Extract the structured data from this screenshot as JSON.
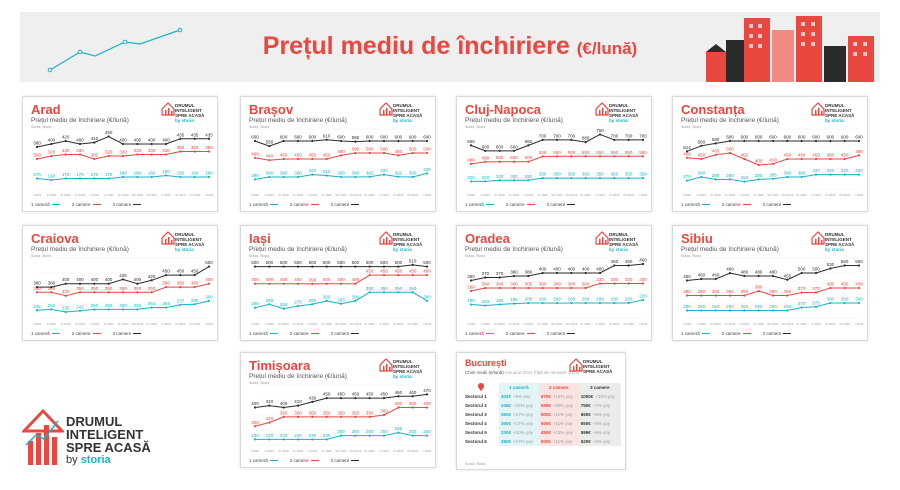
{
  "page": {
    "title": "Prețul mediu de închiriere",
    "title_unit": "(€/lună)",
    "logo": {
      "line1": "DRUMUL",
      "line2": "INTELIGENT",
      "line3": "SPRE ACASĂ",
      "by": "by",
      "brand": "storia"
    }
  },
  "colors": {
    "accent": "#e8483f",
    "one_room": "#1ab3c5",
    "two_rooms": "#e8483f",
    "three_rooms": "#2b2b2b"
  },
  "common": {
    "subtitle": "Prețul mediu de închiriere (€/lună)",
    "source": "Sursa: Storia",
    "legend": [
      "1 cameră",
      "2 camere",
      "3 camere"
    ],
    "x_labels": [
      "I 2023",
      "II 2023",
      "III 2023",
      "IV 2023",
      "V 2023",
      "VI 2023",
      "VII 2023",
      "VIII 2023",
      "IX 2023",
      "X 2023",
      "XI 2023",
      "XII 2023",
      "I 2024"
    ]
  },
  "chart_data": [
    {
      "type": "line",
      "title": "Arad",
      "ylim": [
        100,
        500
      ],
      "series": [
        {
          "name": "1 cameră",
          "values": [
            170,
            160,
            170,
            170,
            170,
            170,
            180,
            180,
            180,
            190,
            180,
            180,
            180
          ]
        },
        {
          "name": "2 camere",
          "values": [
            300,
            320,
            330,
            330,
            300,
            320,
            320,
            330,
            330,
            330,
            350,
            350,
            350
          ]
        },
        {
          "name": "3 camere",
          "values": [
            380,
            400,
            420,
            400,
            410,
            450,
            400,
            400,
            400,
            400,
            435,
            435,
            435
          ]
        }
      ]
    },
    {
      "type": "line",
      "title": "Brașov",
      "ylim": [
        200,
        700
      ],
      "series": [
        {
          "name": "1 cameră",
          "values": [
            280,
            300,
            300,
            300,
            320,
            312,
            300,
            300,
            302,
            320,
            302,
            300,
            330
          ]
        },
        {
          "name": "2 camere",
          "values": [
            460,
            440,
            450,
            450,
            450,
            450,
            480,
            500,
            500,
            500,
            480,
            500,
            500
          ]
        },
        {
          "name": "3 camere",
          "values": [
            600,
            558,
            600,
            600,
            600,
            610,
            600,
            595,
            600,
            600,
            600,
            600,
            600
          ]
        }
      ]
    },
    {
      "type": "line",
      "title": "Cluj-Napoca",
      "ylim": [
        250,
        800
      ],
      "series": [
        {
          "name": "1 cameră",
          "values": [
            320,
            320,
            330,
            330,
            330,
            350,
            350,
            350,
            350,
            350,
            350,
            350,
            350
          ]
        },
        {
          "name": "2 camere",
          "values": [
            480,
            499,
            500,
            500,
            500,
            549,
            550,
            550,
            550,
            550,
            550,
            550,
            550
          ]
        },
        {
          "name": "3 camere",
          "values": [
            650,
            600,
            600,
            600,
            650,
            700,
            700,
            700,
            680,
            750,
            700,
            700,
            700
          ]
        }
      ]
    },
    {
      "type": "line",
      "title": "Constanța",
      "ylim": [
        200,
        700
      ],
      "series": [
        {
          "name": "1 cameră",
          "values": [
            270,
            300,
            280,
            280,
            262,
            280,
            285,
            300,
            300,
            320,
            320,
            320,
            320
          ]
        },
        {
          "name": "2 camere",
          "values": [
            460,
            450,
            485,
            500,
            450,
            400,
            410,
            450,
            450,
            450,
            450,
            450,
            480
          ]
        },
        {
          "name": "3 camere",
          "values": [
            514,
            560,
            580,
            600,
            600,
            600,
            600,
            600,
            600,
            600,
            600,
            600,
            600
          ]
        }
      ]
    },
    {
      "type": "line",
      "title": "Craiova",
      "ylim": [
        200,
        550
      ],
      "series": [
        {
          "name": "1 cameră",
          "values": [
            245,
            250,
            235,
            242,
            250,
            250,
            250,
            250,
            261,
            261,
            277,
            280,
            300
          ]
        },
        {
          "name": "2 camere",
          "values": [
            350,
            350,
            330,
            350,
            350,
            350,
            350,
            350,
            350,
            380,
            380,
            380,
            400
          ]
        },
        {
          "name": "3 camere",
          "values": [
            380,
            380,
            400,
            400,
            400,
            400,
            425,
            400,
            420,
            450,
            450,
            450,
            500
          ]
        }
      ]
    },
    {
      "type": "line",
      "title": "Iași",
      "ylim": [
        200,
        550
      ],
      "series": [
        {
          "name": "1 cameră",
          "values": [
            260,
            280,
            254,
            270,
            280,
            300,
            283,
            300,
            350,
            350,
            350,
            350,
            300
          ]
        },
        {
          "name": "2 camere",
          "values": [
            400,
            400,
            400,
            400,
            399,
            400,
            400,
            400,
            450,
            450,
            450,
            450,
            450
          ]
        },
        {
          "name": "3 camere",
          "values": [
            500,
            500,
            500,
            500,
            500,
            500,
            500,
            500,
            500,
            500,
            500,
            510,
            500
          ]
        }
      ]
    },
    {
      "type": "line",
      "title": "Oradea",
      "ylim": [
        100,
        500
      ],
      "series": [
        {
          "name": "1 cameră",
          "values": [
            190,
            183,
            190,
            196,
            200,
            200,
            199,
            200,
            200,
            200,
            200,
            200,
            220
          ]
        },
        {
          "name": "2 camere",
          "values": [
            280,
            300,
            300,
            300,
            300,
            300,
            300,
            300,
            300,
            330,
            330,
            330,
            330
          ]
        },
        {
          "name": "3 camere",
          "values": [
            350,
            370,
            370,
            380,
            380,
            400,
            400,
            400,
            400,
            400,
            450,
            450,
            460
          ]
        }
      ]
    },
    {
      "type": "line",
      "title": "Sibiu",
      "ylim": [
        200,
        600
      ],
      "series": [
        {
          "name": "1 cameră",
          "values": [
            250,
            250,
            250,
            250,
            250,
            250,
            250,
            250,
            270,
            275,
            300,
            300,
            300
          ]
        },
        {
          "name": "2 camere",
          "values": [
            350,
            350,
            350,
            350,
            350,
            380,
            350,
            350,
            370,
            370,
            400,
            400,
            400
          ]
        },
        {
          "name": "3 camere",
          "values": [
            450,
            460,
            460,
            499,
            480,
            480,
            480,
            455,
            500,
            500,
            530,
            550,
            550
          ]
        }
      ]
    },
    {
      "type": "line",
      "title": "Timișoara",
      "ylim": [
        200,
        520
      ],
      "series": [
        {
          "name": "1 cameră",
          "values": [
            230,
            230,
            230,
            230,
            230,
            230,
            250,
            250,
            250,
            250,
            266,
            250,
            250
          ]
        },
        {
          "name": "2 camere",
          "values": [
            300,
            320,
            350,
            350,
            350,
            350,
            350,
            350,
            350,
            360,
            400,
            400,
            400
          ]
        },
        {
          "name": "3 camere",
          "values": [
            400,
            410,
            400,
            410,
            430,
            450,
            450,
            450,
            450,
            450,
            460,
            460,
            470
          ]
        }
      ]
    },
    {
      "type": "table",
      "title": "București",
      "subtitle": "Chirii medii (€/lună)",
      "period": "Ianuarie 2024 (față de Ianuarie 2023)",
      "source": "Sursa: Storia",
      "columns": [
        "1 cameră",
        "2 camere",
        "3 camere"
      ],
      "rows": [
        {
          "name": "Sectorul 1",
          "values": [
            "402€",
            "670€",
            "1050€"
          ],
          "changes": [
            "+9% yoy",
            "+12% yoy",
            "+11% yoy"
          ]
        },
        {
          "name": "Sectorul 2",
          "values": [
            "345€",
            "599€",
            "750€"
          ],
          "changes": [
            "+15% yoy",
            "+20% yoy",
            "+7% yoy"
          ]
        },
        {
          "name": "Sectorul 3",
          "values": [
            "350€",
            "500€",
            "650€"
          ],
          "changes": [
            "+17% yoy",
            "+11% yoy",
            "+8% yoy"
          ]
        },
        {
          "name": "Sectorul 4",
          "values": [
            "350€",
            "500€",
            "650€"
          ],
          "changes": [
            "+17% yoy",
            "+11% yoy",
            "+8% yoy"
          ]
        },
        {
          "name": "Sectorul 5",
          "values": [
            "330€",
            "450€",
            "599€"
          ],
          "changes": [
            "+10% yoy",
            "+13% yoy",
            "+9% yoy"
          ]
        },
        {
          "name": "Sectorul 6",
          "values": [
            "350€",
            "500€",
            "520€"
          ],
          "changes": [
            "+17% yoy",
            "+11% yoy",
            "+4% yoy"
          ]
        }
      ]
    }
  ]
}
